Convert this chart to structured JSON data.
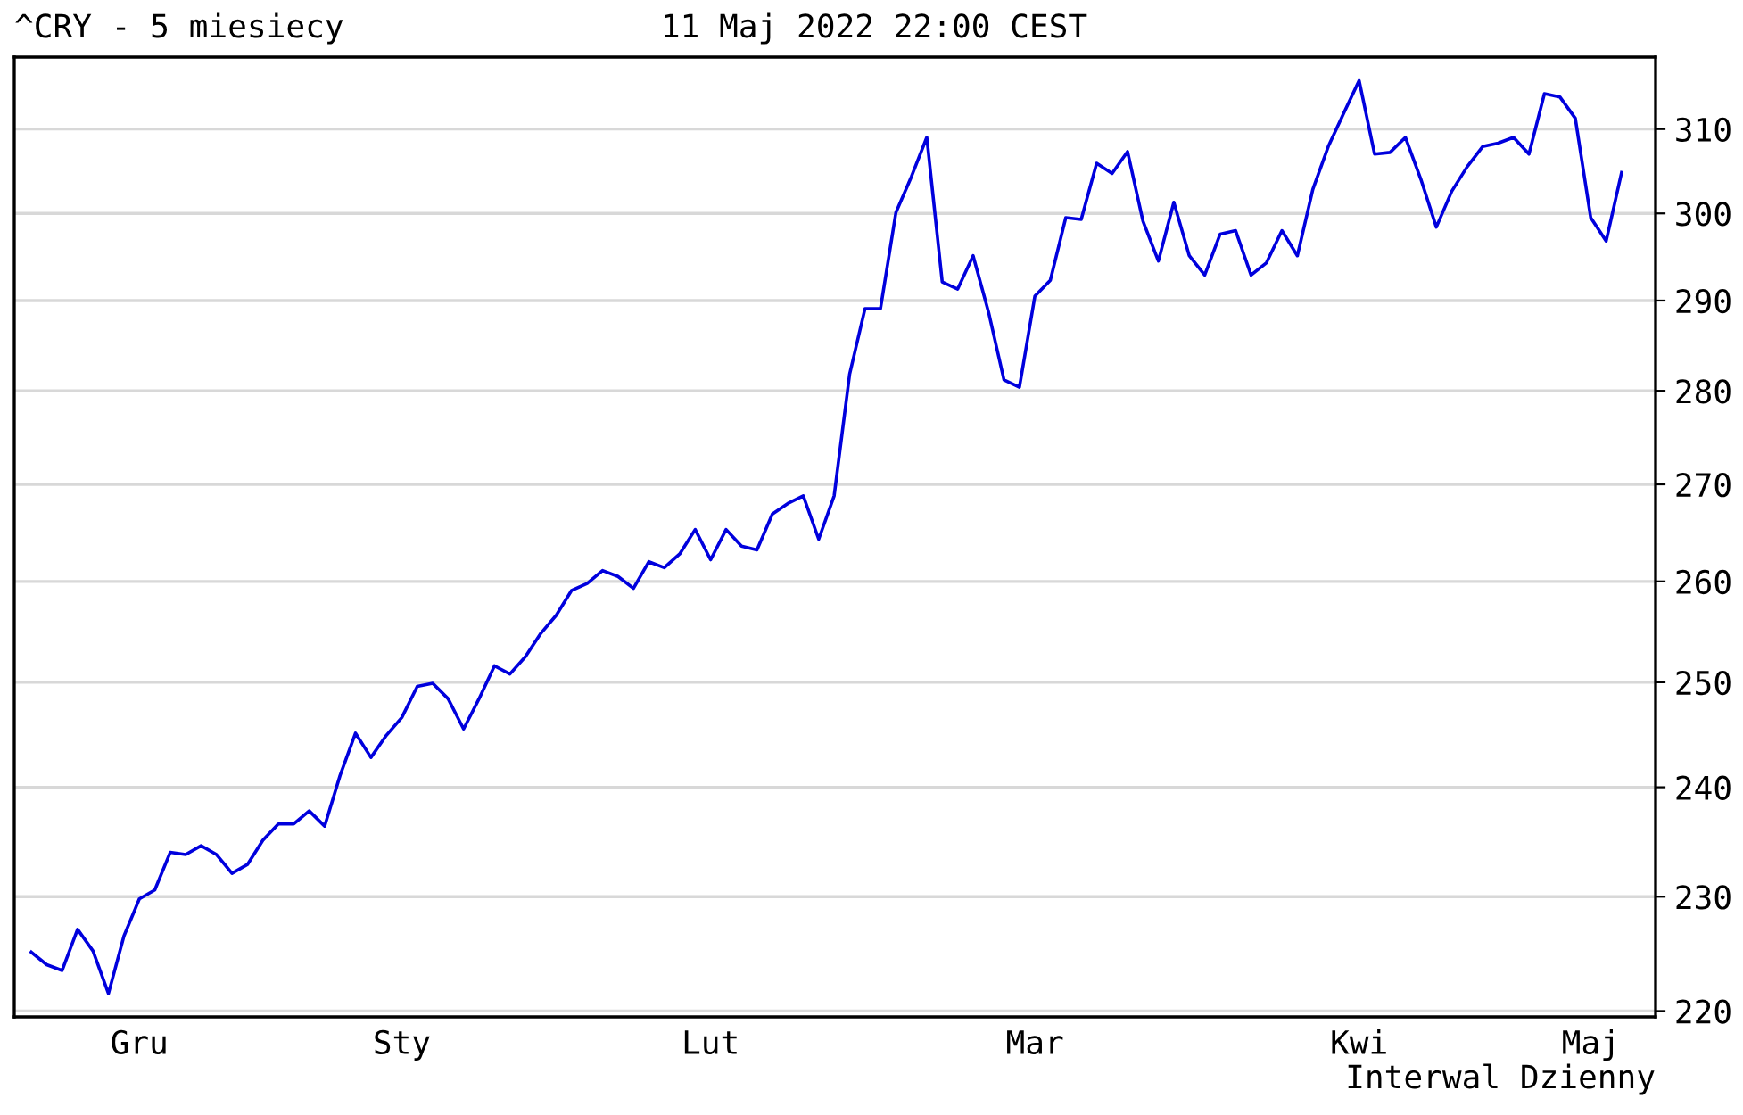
{
  "chart_data": {
    "type": "line",
    "title": "^CRY - 5 miesiecy",
    "subtitle": "11 Maj 2022 22:00 CEST",
    "annotations": [
      "Interwal Dzienny"
    ],
    "categories": [
      null,
      null,
      null,
      null,
      null,
      null,
      null,
      "Gru",
      null,
      null,
      null,
      null,
      null,
      null,
      null,
      null,
      null,
      null,
      null,
      null,
      null,
      null,
      null,
      null,
      "Sty",
      null,
      null,
      null,
      null,
      null,
      null,
      null,
      null,
      null,
      null,
      null,
      null,
      null,
      null,
      null,
      null,
      null,
      null,
      null,
      "Lut",
      null,
      null,
      null,
      null,
      null,
      null,
      null,
      null,
      null,
      null,
      null,
      null,
      null,
      null,
      null,
      null,
      null,
      null,
      null,
      null,
      "Mar",
      null,
      null,
      null,
      null,
      null,
      null,
      null,
      null,
      null,
      null,
      null,
      null,
      null,
      null,
      null,
      null,
      null,
      null,
      null,
      null,
      "Kwi",
      null,
      null,
      null,
      null,
      null,
      null,
      null,
      null,
      null,
      null,
      null,
      null,
      null,
      null,
      "Maj",
      null,
      null
    ],
    "series": [
      {
        "color": "#0000dd",
        "values": [
          225.1,
          224.0,
          223.5,
          227.1,
          225.2,
          221.5,
          226.5,
          229.8,
          230.6,
          234.0,
          233.8,
          234.6,
          233.8,
          232.1,
          232.9,
          235.1,
          236.6,
          236.6,
          237.8,
          236.4,
          241.1,
          245.1,
          242.8,
          244.9,
          246.6,
          249.6,
          249.9,
          248.4,
          245.5,
          248.4,
          251.6,
          250.8,
          252.5,
          254.8,
          256.6,
          259.1,
          259.8,
          261.1,
          260.5,
          259.3,
          262.0,
          261.4,
          262.8,
          265.3,
          262.2,
          265.3,
          263.6,
          263.2,
          266.9,
          268.0,
          268.8,
          264.3,
          268.8,
          281.8,
          289.1,
          289.1,
          300.1,
          304.3,
          309.0,
          292.1,
          291.3,
          295.1,
          288.7,
          281.2,
          280.4,
          290.5,
          292.3,
          299.5,
          299.3,
          305.9,
          304.7,
          307.3,
          299.1,
          294.5,
          301.3,
          295.1,
          292.9,
          297.6,
          298.0,
          292.9,
          294.3,
          298.0,
          295.1,
          302.8,
          307.9,
          311.9,
          315.9,
          307.0,
          307.2,
          309.0,
          304.0,
          298.4,
          302.6,
          305.5,
          307.9,
          308.3,
          309.0,
          307.0,
          314.3,
          313.9,
          311.3,
          299.5,
          296.8,
          304.8
        ]
      }
    ],
    "log": true,
    "ylim": [
      219.5,
      318.8
    ],
    "yticks": [
      220,
      230,
      240,
      250,
      260,
      270,
      280,
      290,
      300,
      310
    ],
    "grid": "y",
    "legend": false,
    "marker": "none",
    "line_style": "solid"
  }
}
